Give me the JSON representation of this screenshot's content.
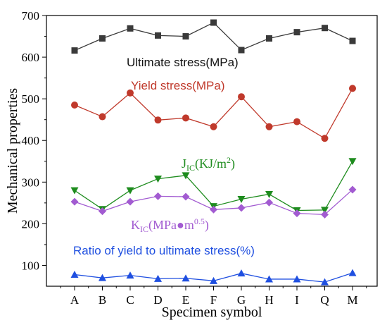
{
  "chart_data": {
    "type": "line",
    "xlabel": "Specimen symbol",
    "ylabel": "Mechanical properties",
    "categories": [
      "A",
      "B",
      "C",
      "D",
      "E",
      "F",
      "G",
      "H",
      "I",
      "Q",
      "M"
    ],
    "ylim": [
      50,
      700
    ],
    "yticks": [
      100,
      200,
      300,
      400,
      500,
      600,
      700
    ],
    "grid": false,
    "series": [
      {
        "name": "Ultimate stress(MPa)",
        "color": "#3a3a3a",
        "marker": "square",
        "values": [
          616,
          645,
          669,
          652,
          650,
          683,
          617,
          645,
          660,
          670,
          639
        ]
      },
      {
        "name": "Yield stress(MPa)",
        "color": "#c0392b",
        "marker": "circle",
        "values": [
          485,
          457,
          514,
          449,
          454,
          433,
          505,
          433,
          445,
          405,
          525
        ]
      },
      {
        "name": "JIC(KJ/m2)",
        "color": "#1e8c1e",
        "marker": "triangle-down",
        "values": [
          280,
          235,
          280,
          308,
          316,
          242,
          259,
          271,
          232,
          233,
          350
        ]
      },
      {
        "name": "KIC(MPa•m0.5)",
        "color": "#a25bd1",
        "marker": "diamond",
        "values": [
          253,
          230,
          253,
          266,
          265,
          234,
          238,
          251,
          225,
          222,
          282
        ]
      },
      {
        "name": "Ratio of yield to ultimate stress(%)",
        "color": "#1f4fe0",
        "marker": "triangle-up",
        "values": [
          78,
          70,
          76,
          68,
          69,
          63,
          81,
          67,
          67,
          60,
          82
        ]
      }
    ],
    "annotations": {
      "ultimate": "Ultimate stress(MPa)",
      "yield": "Yield stress(MPa)",
      "j_main": "J",
      "j_sub": "IC",
      "j_rest": "(KJ/m",
      "j_sup": "2",
      "j_close": ")",
      "k_main": "K",
      "k_sub": "IC",
      "k_rest": "(MPa●m",
      "k_sup": "0.5",
      "k_close": ")",
      "ratio": "Ratio of yield to ultimate stress(%)"
    }
  }
}
